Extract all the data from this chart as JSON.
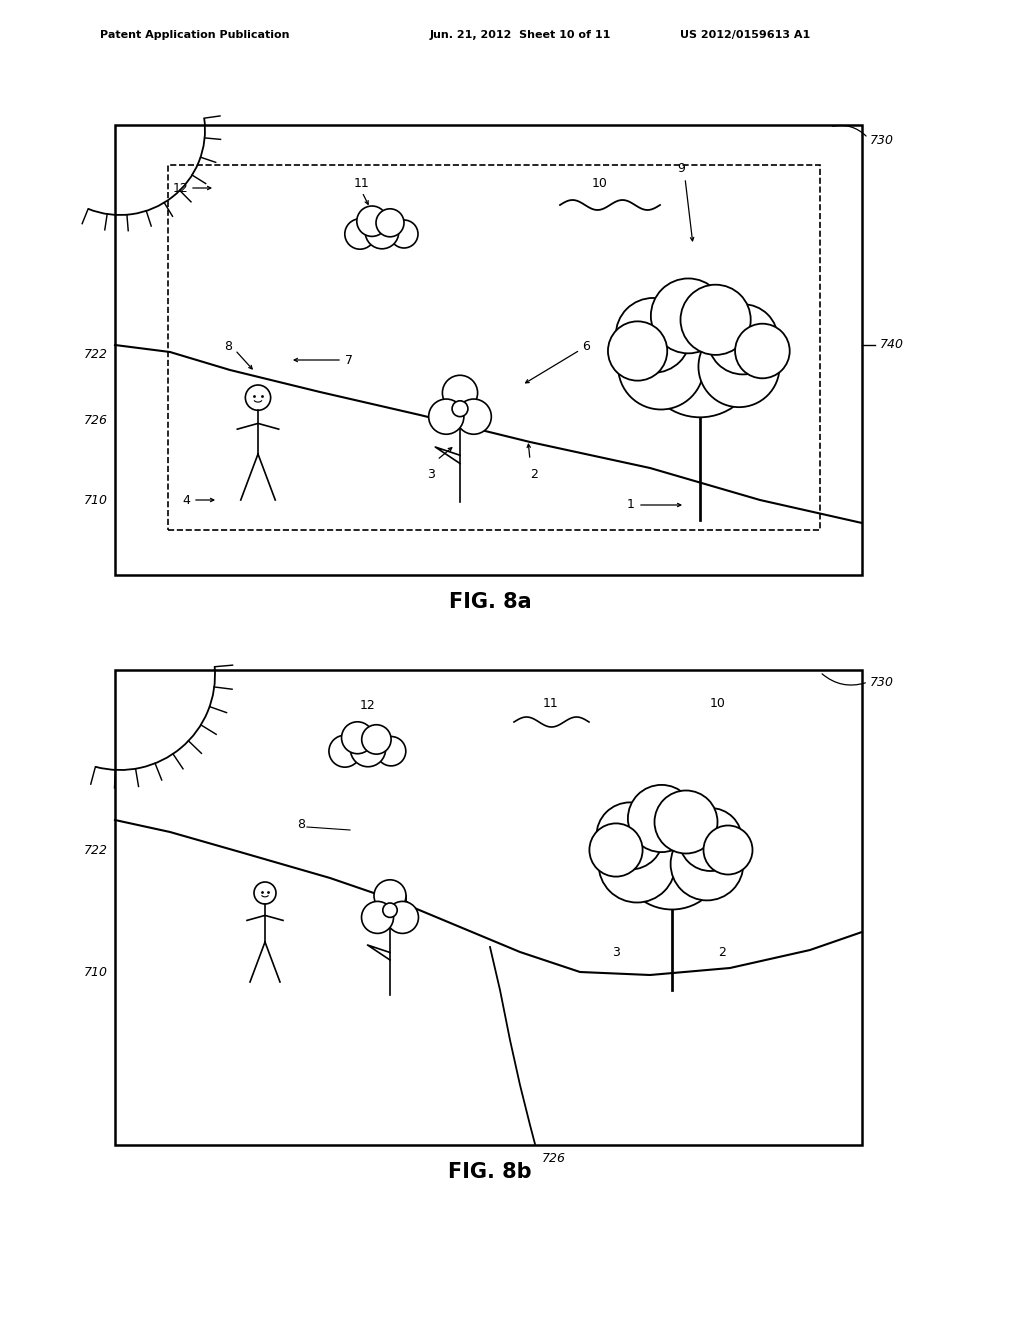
{
  "bg_color": "#ffffff",
  "header_left": "Patent Application Publication",
  "header_mid": "Jun. 21, 2012  Sheet 10 of 11",
  "header_right": "US 2012/0159613 A1",
  "fig8a_label": "FIG. 8a",
  "fig8b_label": "FIG. 8b",
  "text_color": "#000000",
  "line_color": "#000000"
}
